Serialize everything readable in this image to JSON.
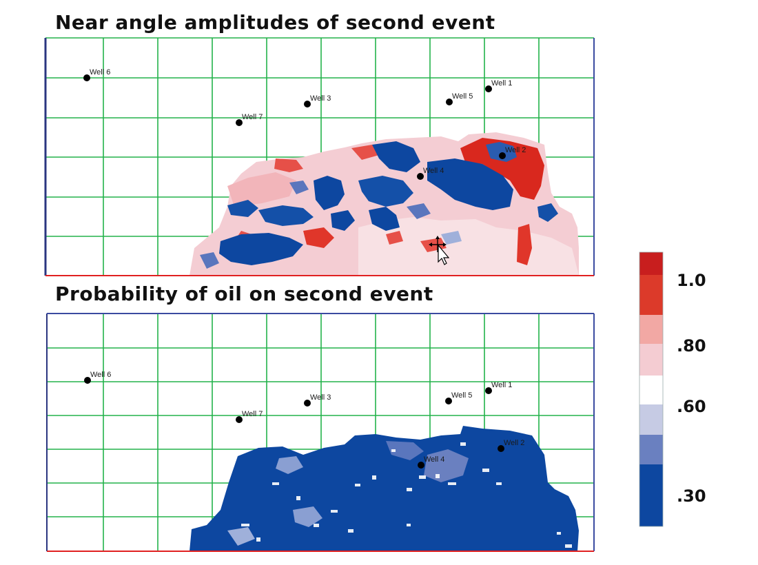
{
  "panels": [
    {
      "id": "near-angle",
      "title": "Near angle amplitudes of second event",
      "wells": [
        {
          "name": "Well 6"
        },
        {
          "name": "Well 3"
        },
        {
          "name": "Well 5"
        },
        {
          "name": "Well 1"
        },
        {
          "name": "Well 7"
        },
        {
          "name": "Well 2"
        },
        {
          "name": "Well 4"
        }
      ]
    },
    {
      "id": "probability-oil",
      "title": "Probability of oil on second event",
      "wells": [
        {
          "name": "Well 6"
        },
        {
          "name": "Well 3"
        },
        {
          "name": "Well 5"
        },
        {
          "name": "Well 1"
        },
        {
          "name": "Well 7"
        },
        {
          "name": "Well 2"
        },
        {
          "name": "Well 4"
        }
      ]
    }
  ],
  "legend": {
    "labels": [
      "1.0",
      ".80",
      ".60",
      ".30"
    ],
    "colors": [
      "#c81e1e",
      "#dc3a2a",
      "#f2a8a4",
      "#f4ccd2",
      "#ffffff",
      "#c6cbe4",
      "#6a80c0",
      "#0d47a0"
    ]
  },
  "colors": {
    "grid": "#22b24a",
    "frame_left": "#2a3580",
    "frame_bottom": "#e02020",
    "deep_blue": "#0d47a0",
    "red": "#d9281e"
  }
}
